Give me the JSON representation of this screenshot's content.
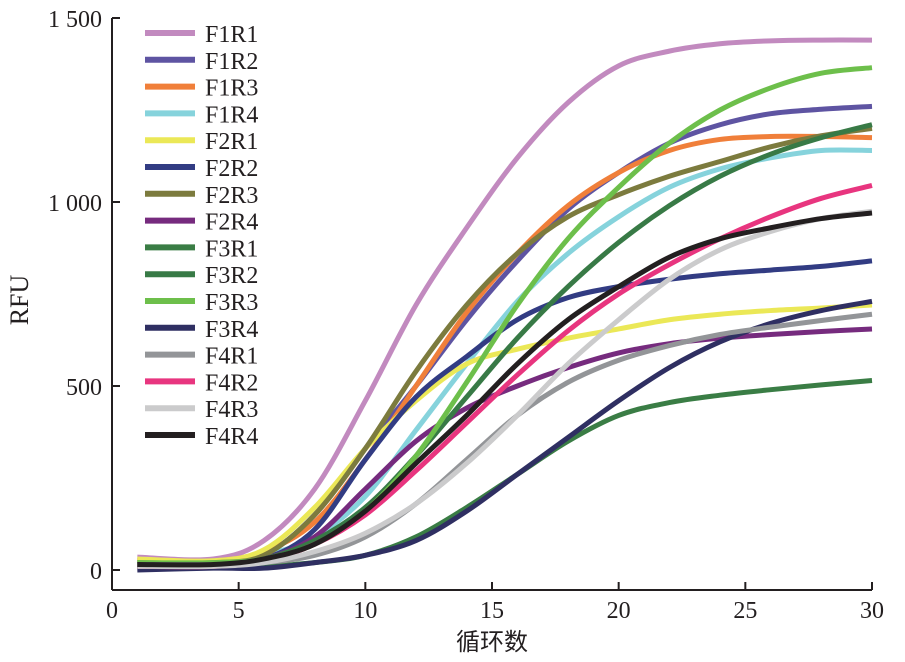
{
  "chart_data": {
    "type": "line",
    "title": "",
    "xlabel": "循环数",
    "ylabel": "RFU",
    "xlim": [
      0,
      30
    ],
    "ylim": [
      0,
      1500
    ],
    "xticks": [
      0,
      5,
      10,
      15,
      20,
      25,
      30
    ],
    "xtick_labels": [
      "0",
      "5",
      "10",
      "15",
      "20",
      "25",
      "30"
    ],
    "yticks": [
      0,
      500,
      1000,
      1500
    ],
    "ytick_labels": [
      "0",
      "500",
      "1 000",
      "1 500"
    ],
    "grid": false,
    "legend_position": "top-left",
    "x": [
      1,
      4,
      6,
      8,
      10,
      12,
      14,
      16,
      18,
      20,
      22,
      24,
      26,
      28,
      30
    ],
    "series": [
      {
        "name": "F1R1",
        "color": "#c28abf",
        "values": [
          35,
          30,
          80,
          220,
          460,
          720,
          930,
          1120,
          1270,
          1370,
          1410,
          1430,
          1438,
          1440,
          1440
        ]
      },
      {
        "name": "F1R2",
        "color": "#5e54a2",
        "values": [
          10,
          15,
          40,
          150,
          330,
          500,
          680,
          840,
          980,
          1080,
          1160,
          1210,
          1240,
          1252,
          1260
        ]
      },
      {
        "name": "F1R3",
        "color": "#f07f3a",
        "values": [
          25,
          25,
          50,
          130,
          300,
          500,
          700,
          860,
          990,
          1080,
          1140,
          1170,
          1178,
          1178,
          1175
        ]
      },
      {
        "name": "F1R4",
        "color": "#86d3dc",
        "values": [
          20,
          25,
          40,
          90,
          200,
          380,
          560,
          730,
          860,
          960,
          1040,
          1090,
          1120,
          1140,
          1140
        ]
      },
      {
        "name": "F2R1",
        "color": "#ebe857",
        "values": [
          30,
          25,
          55,
          170,
          330,
          460,
          560,
          600,
          630,
          655,
          680,
          695,
          705,
          712,
          720
        ]
      },
      {
        "name": "F2R2",
        "color": "#323c83",
        "values": [
          10,
          15,
          30,
          110,
          300,
          470,
          580,
          680,
          740,
          770,
          790,
          805,
          815,
          825,
          840
        ]
      },
      {
        "name": "F2R3",
        "color": "#7c7b3e",
        "values": [
          20,
          20,
          40,
          150,
          330,
          540,
          720,
          860,
          960,
          1020,
          1070,
          1110,
          1150,
          1180,
          1200
        ]
      },
      {
        "name": "F2R4",
        "color": "#762b7e",
        "values": [
          15,
          15,
          30,
          90,
          220,
          350,
          440,
          500,
          550,
          590,
          615,
          630,
          640,
          648,
          655
        ]
      },
      {
        "name": "F3R1",
        "color": "#3a7d45",
        "values": [
          10,
          10,
          10,
          20,
          40,
          90,
          170,
          260,
          350,
          420,
          455,
          475,
          490,
          503,
          515
        ]
      },
      {
        "name": "F3R2",
        "color": "#387a46",
        "values": [
          10,
          15,
          30,
          80,
          170,
          310,
          470,
          630,
          770,
          890,
          990,
          1070,
          1130,
          1175,
          1210
        ]
      },
      {
        "name": "F3R3",
        "color": "#6dbf4b",
        "values": [
          20,
          20,
          30,
          70,
          160,
          310,
          510,
          720,
          900,
          1040,
          1160,
          1250,
          1310,
          1350,
          1365
        ]
      },
      {
        "name": "F3R4",
        "color": "#2f2f62",
        "values": [
          0,
          5,
          5,
          20,
          40,
          80,
          160,
          260,
          360,
          460,
          550,
          620,
          670,
          705,
          730
        ]
      },
      {
        "name": "F4R1",
        "color": "#939598",
        "values": [
          15,
          15,
          20,
          40,
          90,
          180,
          300,
          420,
          510,
          570,
          610,
          640,
          660,
          678,
          695
        ]
      },
      {
        "name": "F4R2",
        "color": "#e8357f",
        "values": [
          10,
          10,
          25,
          70,
          150,
          270,
          400,
          530,
          650,
          750,
          830,
          900,
          960,
          1010,
          1045
        ]
      },
      {
        "name": "F4R3",
        "color": "#cbcbcc",
        "values": [
          10,
          10,
          20,
          50,
          100,
          180,
          290,
          420,
          560,
          680,
          790,
          870,
          920,
          955,
          975
        ]
      },
      {
        "name": "F4R4",
        "color": "#231f20",
        "values": [
          15,
          15,
          30,
          70,
          160,
          290,
          420,
          560,
          680,
          770,
          850,
          900,
          930,
          955,
          970
        ]
      }
    ]
  }
}
